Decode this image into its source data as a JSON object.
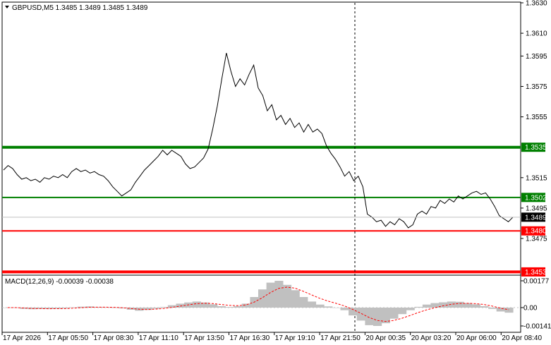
{
  "window": {
    "title": "GBPUSD,M5  1.3485 1.3489 1.3485 1.3489",
    "dropdown_icon": "triangle-down-icon"
  },
  "colors": {
    "price_line": "#000000",
    "support_strong": "#008000",
    "support": "#008000",
    "resistance": "#ff0000",
    "macd_hist": "#c0c0c0",
    "macd_signal": "#ff0000",
    "current_price_label": "#000000"
  },
  "price_axis": {
    "ticks": [
      "1.3630",
      "1.3610",
      "1.3595",
      "1.3575",
      "1.3555",
      "1.3515",
      "1.3495",
      "1.3475"
    ],
    "tick_values": [
      1.363,
      1.361,
      1.3595,
      1.3575,
      1.3555,
      1.3515,
      1.3495,
      1.3475
    ]
  },
  "levels": [
    {
      "name": "level-1-3535",
      "label": "1.3535",
      "value": 1.3535,
      "color": "#008000",
      "thick": true
    },
    {
      "name": "level-1-3502",
      "label": "1.3502",
      "value": 1.3502,
      "color": "#008000",
      "thick": false
    },
    {
      "name": "level-1-3480",
      "label": "1.3480",
      "value": 1.348,
      "color": "#ff0000",
      "thick": false
    },
    {
      "name": "level-1-3453",
      "label": "1.3453",
      "value": 1.3453,
      "color": "#ff0000",
      "thick": true
    }
  ],
  "current_price": {
    "label": "1.3489",
    "value": 1.3489
  },
  "macd": {
    "title": "MACD(12,26,9) -0.00039 -0.00038",
    "ticks": [
      "0.00177",
      "0.00",
      "-0.00141"
    ],
    "tick_values": [
      0.00177,
      0.0,
      -0.00141
    ]
  },
  "time_axis": {
    "labels": [
      "17 Apr 2026",
      "17 Apr 05:50",
      "17 Apr 08:30",
      "17 Apr 11:10",
      "17 Apr 13:50",
      "17 Apr 16:30",
      "17 Apr 19:10",
      "17 Apr 21:50",
      "20 Apr 00:35",
      "20 Apr 03:20",
      "20 Apr 06:00",
      "20 Apr 08:40"
    ]
  },
  "chart_data": {
    "type": "line",
    "series": [
      {
        "values": [
          1.352,
          1.3523,
          1.3521,
          1.3517,
          1.3514,
          1.3515,
          1.3513,
          1.3514,
          1.3512,
          1.3515,
          1.3514,
          1.3516,
          1.3515,
          1.3517,
          1.3515,
          1.3519,
          1.3521,
          1.3519,
          1.352,
          1.3518,
          1.3519,
          1.3517,
          1.3516,
          1.3513,
          1.3509,
          1.3506,
          1.3503,
          1.3505,
          1.3507,
          1.3512,
          1.3516,
          1.352,
          1.3523,
          1.3526,
          1.3529,
          1.3533,
          1.353,
          1.3533,
          1.3531,
          1.3529,
          1.3524,
          1.3521,
          1.3522,
          1.3525,
          1.3528,
          1.3534,
          1.3547,
          1.3562,
          1.358,
          1.3597,
          1.3585,
          1.3575,
          1.358,
          1.3576,
          1.3583,
          1.3589,
          1.3574,
          1.3569,
          1.3559,
          1.3563,
          1.3553,
          1.3556,
          1.355,
          1.3554,
          1.3548,
          1.3551,
          1.3545,
          1.355,
          1.3545,
          1.3547,
          1.3544,
          1.3536,
          1.3531,
          1.3527,
          1.3522,
          1.3516,
          1.3519,
          1.3513,
          1.3516,
          1.3509,
          1.3491,
          1.3489,
          1.3486,
          1.3487,
          1.3483,
          1.3486,
          1.3484,
          1.3488,
          1.3486,
          1.3482,
          1.3484,
          1.3491,
          1.3493,
          1.3491,
          1.3496,
          1.3495,
          1.35,
          1.3498,
          1.3501,
          1.3499,
          1.3503,
          1.3501,
          1.3503,
          1.3505,
          1.3506,
          1.3504,
          1.3505,
          1.3501,
          1.3496,
          1.349,
          1.3488,
          1.3486,
          1.3489
        ]
      }
    ],
    "macd_histogram": [
      0.0,
      0.0,
      -0.0001,
      -0.00012,
      -0.0001,
      -0.0001,
      -8e-05,
      -6e-05,
      2e-05,
      6e-05,
      8e-05,
      4e-05,
      2e-05,
      0.0,
      -6e-05,
      -0.00016,
      -0.00024,
      -0.00018,
      -8e-05,
      4e-05,
      0.00016,
      0.00026,
      0.00034,
      0.0004,
      0.00034,
      0.00022,
      0.0001,
      4e-05,
      0.0001,
      0.00026,
      0.0007,
      0.0012,
      0.00165,
      0.00177,
      0.0015,
      0.00115,
      0.0007,
      0.0004,
      0.0002,
      8e-05,
      0.0,
      -0.0002,
      -0.0006,
      -0.001,
      -0.00135,
      -0.00141,
      -0.0012,
      -0.00085,
      -0.0005,
      -0.0002,
      5e-05,
      0.0002,
      0.0003,
      0.00035,
      0.0004,
      0.00038,
      0.0003,
      0.00022,
      0.0001,
      -0.0001,
      -0.0003,
      -0.00039
    ]
  }
}
